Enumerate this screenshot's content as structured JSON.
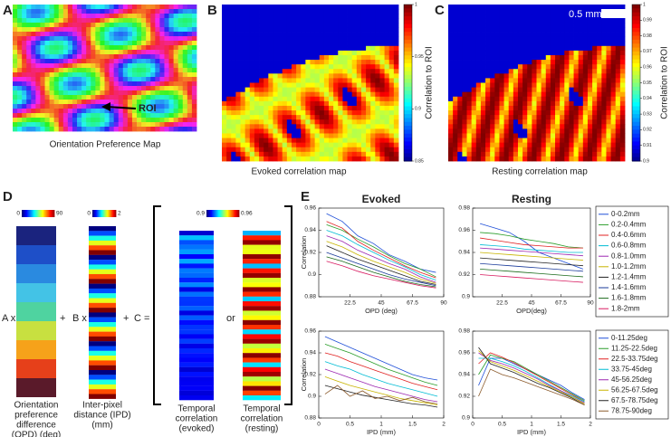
{
  "panels": {
    "A": {
      "label": "A",
      "caption": "Orientation Preference Map",
      "annotation": "ROI"
    },
    "B": {
      "label": "B",
      "caption": "Evoked correlation map",
      "colorbar_label": "Correlation to ROI",
      "colorbar_lim": [
        0.85,
        1
      ],
      "colorbar_ticks": [
        0.85,
        0.9,
        0.95,
        1
      ]
    },
    "C": {
      "label": "C",
      "caption": "Resting correlation map",
      "colorbar_label": "Correlation to ROI",
      "scale_bar": "0.5 mm",
      "colorbar_lim": [
        0.9,
        1
      ],
      "colorbar_ticks": [
        0.9,
        0.91,
        0.92,
        0.93,
        0.94,
        0.95,
        0.96,
        0.97,
        0.98,
        0.99,
        1
      ]
    },
    "D": {
      "label": "D",
      "opd_lim": [
        0,
        90
      ],
      "ipd_lim": [
        0,
        2
      ],
      "corr_lim": [
        0.9,
        0.96
      ],
      "term_a": "A x",
      "plus_1": "+",
      "term_b": "B x",
      "plus_2": "+",
      "term_c": "C =",
      "or": "or",
      "caption_opd": [
        "Orientation",
        "preference",
        "difference",
        "(OPD) (deg)"
      ],
      "caption_ipd": [
        "Inter-pixel",
        "distance (IPD)",
        "(mm)"
      ],
      "caption_evoked": [
        "Temporal",
        "correlation",
        "(evoked)"
      ],
      "caption_resting": [
        "Temporal",
        "correlation",
        "(resting)"
      ]
    },
    "E": {
      "label": "E"
    }
  },
  "chart_data": [
    {
      "type": "line",
      "title": "Evoked",
      "xlabel": "OPD (deg)",
      "ylabel": "Correlation",
      "x": [
        5.6,
        16.9,
        28.1,
        39.4,
        50.6,
        61.9,
        73.1,
        84.4
      ],
      "xlim": [
        0,
        90
      ],
      "xticks": [
        22.5,
        45,
        67.5,
        90
      ],
      "ylim": [
        0.88,
        0.96
      ],
      "yticks": [
        0.88,
        0.9,
        0.92,
        0.94,
        0.96
      ],
      "series": [
        {
          "color": "#1f4fd8",
          "values": [
            0.955,
            0.948,
            0.935,
            0.928,
            0.918,
            0.912,
            0.905,
            0.902
          ]
        },
        {
          "color": "#2a9d2a",
          "values": [
            0.945,
            0.94,
            0.932,
            0.925,
            0.917,
            0.91,
            0.905,
            0.898
          ]
        },
        {
          "color": "#e02020",
          "values": [
            0.948,
            0.942,
            0.93,
            0.922,
            0.915,
            0.908,
            0.902,
            0.897
          ]
        },
        {
          "color": "#00bcd4",
          "values": [
            0.94,
            0.935,
            0.927,
            0.92,
            0.913,
            0.907,
            0.9,
            0.895
          ]
        },
        {
          "color": "#9c27b0",
          "values": [
            0.935,
            0.93,
            0.922,
            0.916,
            0.91,
            0.905,
            0.898,
            0.893
          ]
        },
        {
          "color": "#c8b400",
          "values": [
            0.93,
            0.925,
            0.918,
            0.912,
            0.907,
            0.902,
            0.896,
            0.892
          ]
        },
        {
          "color": "#222222",
          "values": [
            0.926,
            0.92,
            0.914,
            0.909,
            0.904,
            0.899,
            0.894,
            0.891
          ]
        },
        {
          "color": "#1a3a9a",
          "values": [
            0.92,
            0.915,
            0.91,
            0.905,
            0.9,
            0.896,
            0.893,
            0.89
          ]
        },
        {
          "color": "#1b6b1b",
          "values": [
            0.916,
            0.912,
            0.907,
            0.902,
            0.898,
            0.894,
            0.891,
            0.889
          ]
        },
        {
          "color": "#d81b60",
          "values": [
            0.912,
            0.908,
            0.903,
            0.899,
            0.896,
            0.893,
            0.89,
            0.888
          ]
        }
      ]
    },
    {
      "type": "line",
      "title": "Resting",
      "xlabel": "OPD(deg)",
      "x": [
        5.6,
        16.9,
        28.1,
        39.4,
        50.6,
        61.9,
        73.1,
        84.4
      ],
      "xlim": [
        0,
        90
      ],
      "xticks": [
        22.5,
        45,
        67.5,
        90
      ],
      "ylim": [
        0.9,
        0.98
      ],
      "yticks": [
        0.9,
        0.92,
        0.94,
        0.96,
        0.98
      ],
      "series": [
        {
          "name": "0-0.2mm",
          "color": "#1f4fd8",
          "values": [
            0.966,
            0.962,
            0.958,
            0.95,
            0.94,
            0.935,
            0.93,
            0.925
          ]
        },
        {
          "name": "0.2-0.4mm",
          "color": "#2a9d2a",
          "values": [
            0.958,
            0.957,
            0.955,
            0.952,
            0.95,
            0.948,
            0.945,
            0.944
          ]
        },
        {
          "name": "0.4-0.6mm",
          "color": "#e02020",
          "values": [
            0.953,
            0.951,
            0.949,
            0.947,
            0.946,
            0.945,
            0.944,
            0.944
          ]
        },
        {
          "name": "0.6-0.8mm",
          "color": "#00bcd4",
          "values": [
            0.947,
            0.946,
            0.945,
            0.943,
            0.942,
            0.941,
            0.94,
            0.94
          ]
        },
        {
          "name": "0.8-1.0mm",
          "color": "#9c27b0",
          "values": [
            0.944,
            0.943,
            0.942,
            0.941,
            0.94,
            0.939,
            0.938,
            0.937
          ]
        },
        {
          "name": "1.0-1.2mm",
          "color": "#c8b400",
          "values": [
            0.94,
            0.939,
            0.938,
            0.937,
            0.936,
            0.935,
            0.934,
            0.933
          ]
        },
        {
          "name": "1.2-1.4mm",
          "color": "#222222",
          "values": [
            0.935,
            0.934,
            0.933,
            0.932,
            0.931,
            0.93,
            0.929,
            0.928
          ]
        },
        {
          "name": "1.4-1.6mm",
          "color": "#1a3a9a",
          "values": [
            0.93,
            0.929,
            0.928,
            0.927,
            0.926,
            0.925,
            0.924,
            0.923
          ]
        },
        {
          "name": "1.6-1.8mm",
          "color": "#1b6b1b",
          "values": [
            0.925,
            0.924,
            0.923,
            0.922,
            0.921,
            0.92,
            0.919,
            0.918
          ]
        },
        {
          "name": "1.8-2mm",
          "color": "#d81b60",
          "values": [
            0.92,
            0.919,
            0.918,
            0.917,
            0.916,
            0.915,
            0.914,
            0.913
          ]
        }
      ]
    },
    {
      "type": "line",
      "xlabel": "IPD (mm)",
      "ylabel": "Correlation",
      "x": [
        0.1,
        0.3,
        0.5,
        0.7,
        0.9,
        1.1,
        1.3,
        1.5,
        1.7,
        1.9
      ],
      "xlim": [
        0,
        2
      ],
      "xticks": [
        0,
        0.5,
        1,
        1.5,
        2
      ],
      "ylim": [
        0.88,
        0.96
      ],
      "yticks": [
        0.88,
        0.9,
        0.92,
        0.94,
        0.96
      ],
      "series": [
        {
          "color": "#1f4fd8",
          "values": [
            0.955,
            0.95,
            0.945,
            0.94,
            0.935,
            0.93,
            0.925,
            0.92,
            0.917,
            0.915
          ]
        },
        {
          "color": "#2a9d2a",
          "values": [
            0.948,
            0.944,
            0.94,
            0.935,
            0.93,
            0.925,
            0.921,
            0.917,
            0.913,
            0.91
          ]
        },
        {
          "color": "#e02020",
          "values": [
            0.94,
            0.937,
            0.932,
            0.928,
            0.924,
            0.92,
            0.916,
            0.912,
            0.909,
            0.906
          ]
        },
        {
          "color": "#00bcd4",
          "values": [
            0.932,
            0.928,
            0.925,
            0.92,
            0.916,
            0.912,
            0.909,
            0.906,
            0.903,
            0.9
          ]
        },
        {
          "color": "#9c27b0",
          "values": [
            0.925,
            0.921,
            0.917,
            0.913,
            0.909,
            0.906,
            0.903,
            0.9,
            0.897,
            0.895
          ]
        },
        {
          "color": "#c8b400",
          "values": [
            0.918,
            0.914,
            0.91,
            0.907,
            0.904,
            0.901,
            0.898,
            0.896,
            0.894,
            0.892
          ]
        },
        {
          "color": "#222222",
          "values": [
            0.91,
            0.907,
            0.904,
            0.901,
            0.899,
            0.897,
            0.895,
            0.893,
            0.892,
            0.89
          ]
        },
        {
          "color": "#8b5a2b",
          "values": [
            0.902,
            0.91,
            0.9,
            0.905,
            0.898,
            0.9,
            0.896,
            0.899,
            0.895,
            0.893
          ]
        }
      ]
    },
    {
      "type": "line",
      "xlabel": "IPD (mm)",
      "x": [
        0.1,
        0.3,
        0.5,
        0.7,
        0.9,
        1.1,
        1.3,
        1.5,
        1.7,
        1.9
      ],
      "xlim": [
        0,
        2
      ],
      "xticks": [
        0,
        0.5,
        1,
        1.5,
        2
      ],
      "ylim": [
        0.9,
        0.98
      ],
      "yticks": [
        0.9,
        0.92,
        0.94,
        0.96,
        0.98
      ],
      "series": [
        {
          "name": "0-11.25deg",
          "color": "#1f4fd8",
          "values": [
            0.93,
            0.955,
            0.955,
            0.95,
            0.945,
            0.94,
            0.935,
            0.93,
            0.923,
            0.917
          ]
        },
        {
          "name": "11.25-22.5deg",
          "color": "#2a9d2a",
          "values": [
            0.94,
            0.958,
            0.955,
            0.952,
            0.946,
            0.94,
            0.934,
            0.928,
            0.922,
            0.916
          ]
        },
        {
          "name": "22.5-33.75deg",
          "color": "#e02020",
          "values": [
            0.95,
            0.96,
            0.956,
            0.951,
            0.945,
            0.939,
            0.933,
            0.927,
            0.921,
            0.915
          ]
        },
        {
          "name": "33.75-45deg",
          "color": "#00bcd4",
          "values": [
            0.955,
            0.955,
            0.952,
            0.948,
            0.943,
            0.937,
            0.931,
            0.925,
            0.92,
            0.915
          ]
        },
        {
          "name": "45-56.25deg",
          "color": "#9c27b0",
          "values": [
            0.96,
            0.953,
            0.95,
            0.946,
            0.941,
            0.936,
            0.93,
            0.925,
            0.919,
            0.914
          ]
        },
        {
          "name": "56.25-67.5deg",
          "color": "#c8b400",
          "values": [
            0.962,
            0.952,
            0.948,
            0.944,
            0.939,
            0.934,
            0.929,
            0.924,
            0.919,
            0.913
          ]
        },
        {
          "name": "67.5-78.75deg",
          "color": "#222222",
          "values": [
            0.965,
            0.95,
            0.946,
            0.942,
            0.937,
            0.932,
            0.928,
            0.923,
            0.918,
            0.912
          ]
        },
        {
          "name": "78.75-90deg",
          "color": "#8b5a2b",
          "values": [
            0.92,
            0.945,
            0.94,
            0.937,
            0.933,
            0.929,
            0.925,
            0.921,
            0.917,
            0.912
          ]
        }
      ]
    }
  ]
}
